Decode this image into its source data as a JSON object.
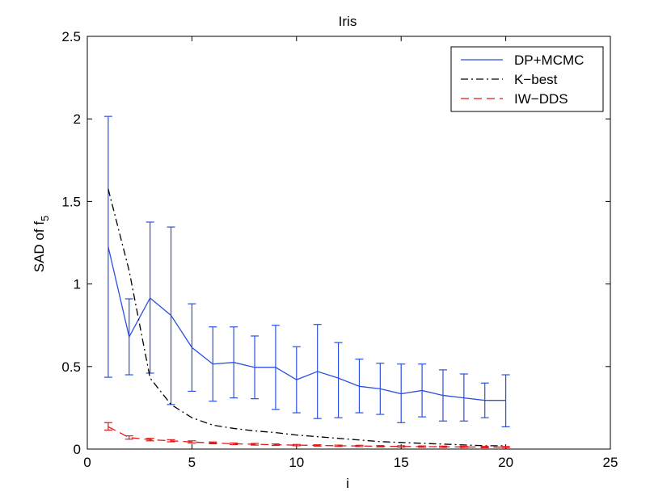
{
  "chart_data": {
    "type": "line",
    "title": "Iris",
    "xlabel": "i",
    "ylabel_main": "SAD of f",
    "ylabel_sub": "5",
    "xlim": [
      0,
      25
    ],
    "ylim": [
      0,
      2.5
    ],
    "xticks": [
      0,
      5,
      10,
      15,
      20,
      25
    ],
    "yticks": [
      0,
      0.5,
      1,
      1.5,
      2,
      2.5
    ],
    "xtick_labels": [
      "0",
      "5",
      "10",
      "15",
      "20",
      "25"
    ],
    "ytick_labels": [
      "0",
      "0.5",
      "1",
      "1.5",
      "2",
      "2.5"
    ],
    "grid": false,
    "legend_position": "top-right",
    "x": [
      1,
      2,
      3,
      4,
      5,
      6,
      7,
      8,
      9,
      10,
      11,
      12,
      13,
      14,
      15,
      16,
      17,
      18,
      19,
      20
    ],
    "series": [
      {
        "name": "DP+MCMC",
        "color": "#2b50e0",
        "dash": "solid",
        "values": [
          1.225,
          0.68,
          0.915,
          0.81,
          0.615,
          0.515,
          0.525,
          0.495,
          0.495,
          0.42,
          0.47,
          0.43,
          0.38,
          0.365,
          0.335,
          0.355,
          0.325,
          0.31,
          0.295,
          0.295
        ],
        "err_low": [
          0.435,
          0.45,
          0.46,
          0.27,
          0.35,
          0.29,
          0.31,
          0.305,
          0.24,
          0.22,
          0.185,
          0.19,
          0.22,
          0.21,
          0.16,
          0.195,
          0.17,
          0.17,
          0.19,
          0.135
        ],
        "err_high": [
          2.015,
          0.91,
          1.375,
          1.345,
          0.88,
          0.74,
          0.74,
          0.685,
          0.75,
          0.62,
          0.755,
          0.645,
          0.545,
          0.52,
          0.515,
          0.515,
          0.48,
          0.455,
          0.4,
          0.45
        ]
      },
      {
        "name": "K−best",
        "color": "#000000",
        "dash": "dashdot",
        "values": [
          1.575,
          1.08,
          0.43,
          0.27,
          0.19,
          0.145,
          0.125,
          0.11,
          0.1,
          0.085,
          0.075,
          0.065,
          0.055,
          0.045,
          0.04,
          0.035,
          0.03,
          0.025,
          0.02,
          0.02
        ]
      },
      {
        "name": "IW−DDS",
        "color": "#e01818",
        "dash": "dashed",
        "values": [
          0.135,
          0.07,
          0.057,
          0.05,
          0.043,
          0.037,
          0.032,
          0.029,
          0.026,
          0.024,
          0.022,
          0.02,
          0.019,
          0.017,
          0.016,
          0.015,
          0.014,
          0.013,
          0.012,
          0.012
        ],
        "err_low": [
          0.115,
          0.06,
          0.05,
          0.044,
          0.037,
          0.032,
          0.027,
          0.024,
          0.022,
          0.02,
          0.018,
          0.016,
          0.015,
          0.013,
          0.012,
          0.011,
          0.01,
          0.009,
          0.008,
          0.008
        ],
        "err_high": [
          0.16,
          0.08,
          0.065,
          0.057,
          0.05,
          0.043,
          0.037,
          0.034,
          0.031,
          0.028,
          0.026,
          0.024,
          0.023,
          0.021,
          0.02,
          0.019,
          0.018,
          0.017,
          0.016,
          0.016
        ]
      }
    ]
  }
}
